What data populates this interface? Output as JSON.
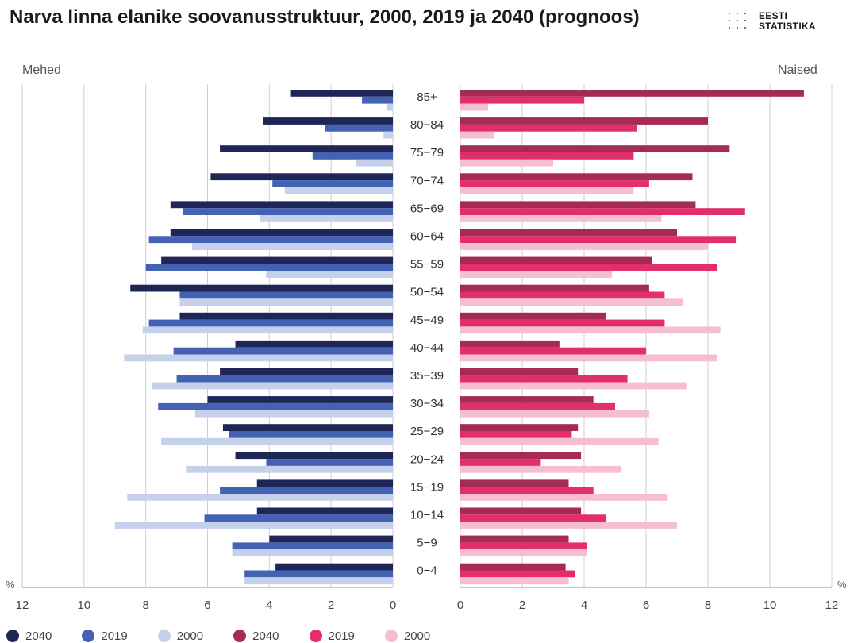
{
  "title": "Narva linna elanike soovanusstruktuur, 2000, 2019 ja 2040 (prognoos)",
  "logo": {
    "line1": "EESTI",
    "line2": "STATISTIKA"
  },
  "chart_data": {
    "type": "bar",
    "orientation": "horizontal-population-pyramid",
    "left_label": "Mehed",
    "right_label": "Naised",
    "unit": "%",
    "categories": [
      "85+",
      "80−84",
      "75−79",
      "70−74",
      "65−69",
      "60−64",
      "55−59",
      "50−54",
      "45−49",
      "40−44",
      "35−39",
      "30−34",
      "25−29",
      "20−24",
      "15−19",
      "10−14",
      "5−9",
      "0−4"
    ],
    "x_ticks_left": [
      "12",
      "10",
      "8",
      "6",
      "4",
      "2",
      "0"
    ],
    "x_ticks_right": [
      "0",
      "2",
      "4",
      "6",
      "8",
      "10",
      "12"
    ],
    "xlim": [
      0,
      12
    ],
    "grid": true,
    "legend_position": "bottom",
    "colors": {
      "men_2040": "#1e2557",
      "men_2019": "#4462b3",
      "men_2000": "#c5d0ea",
      "women_2040": "#a52a55",
      "women_2019": "#e22e6c",
      "women_2000": "#f6bfd0"
    },
    "men": [
      {
        "name": "2040",
        "values": [
          3.3,
          4.2,
          5.6,
          5.9,
          7.2,
          7.2,
          7.5,
          8.5,
          6.9,
          5.1,
          5.6,
          6.0,
          5.5,
          5.1,
          4.4,
          4.4,
          4.0,
          3.8
        ]
      },
      {
        "name": "2019",
        "values": [
          1.0,
          2.2,
          2.6,
          3.9,
          6.8,
          7.9,
          8.0,
          6.9,
          7.9,
          7.1,
          7.0,
          7.6,
          5.3,
          4.1,
          5.6,
          6.1,
          5.2,
          4.8
        ]
      },
      {
        "name": "2000",
        "values": [
          0.2,
          0.3,
          1.2,
          3.5,
          4.3,
          6.5,
          4.1,
          6.9,
          8.1,
          8.7,
          7.8,
          6.4,
          7.5,
          6.7,
          8.6,
          9.0,
          5.2,
          4.8
        ]
      }
    ],
    "women": [
      {
        "name": "2040",
        "values": [
          11.1,
          8.0,
          8.7,
          7.5,
          7.6,
          7.0,
          6.2,
          6.1,
          4.7,
          3.2,
          3.8,
          4.3,
          3.8,
          3.9,
          3.5,
          3.9,
          3.5,
          3.4
        ]
      },
      {
        "name": "2019",
        "values": [
          4.0,
          5.7,
          5.6,
          6.1,
          9.2,
          8.9,
          8.3,
          6.6,
          6.6,
          6.0,
          5.4,
          5.0,
          3.6,
          2.6,
          4.3,
          4.7,
          4.1,
          3.7
        ]
      },
      {
        "name": "2000",
        "values": [
          0.9,
          1.1,
          3.0,
          5.6,
          6.5,
          8.0,
          4.9,
          7.2,
          8.4,
          8.3,
          7.3,
          6.1,
          6.4,
          5.2,
          6.7,
          7.0,
          4.1,
          3.5
        ]
      }
    ]
  },
  "legend": [
    {
      "label": "2040",
      "color": "#1e2557"
    },
    {
      "label": "2019",
      "color": "#4462b3"
    },
    {
      "label": "2000",
      "color": "#c5d0ea"
    },
    {
      "label": "2040",
      "color": "#a52a55"
    },
    {
      "label": "2019",
      "color": "#e22e6c"
    },
    {
      "label": "2000",
      "color": "#f6bfd0"
    }
  ]
}
